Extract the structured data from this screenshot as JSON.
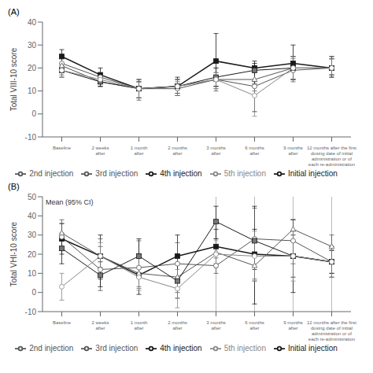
{
  "chart_data": [
    {
      "type": "line",
      "title": "(A)",
      "categories": [
        "Baseline",
        "2 weeks\nafter",
        "1 month\nafter",
        "2 months\nafter",
        "3 months\nafter",
        "6 months\nafter",
        "9 months\nafter",
        "12 months after the first\ndosing date of initial\nadministration or of\neach re-administration"
      ],
      "y_label": "Total VIII-10 score",
      "ylim": [
        -10,
        40
      ],
      "yticks": [
        -10,
        0,
        10,
        20,
        30,
        40
      ],
      "grid": false,
      "legend": "bottom",
      "series": [
        {
          "name": "Initial injection",
          "color": "#1a1a1a",
          "marker": "square",
          "values": [
            25,
            17,
            11,
            12,
            23,
            20,
            22,
            20
          ],
          "ci_low": [
            22,
            14,
            7,
            9,
            12,
            1,
            15,
            16
          ],
          "ci_high": [
            28,
            20,
            15,
            16,
            35,
            23,
            30,
            25
          ]
        },
        {
          "name": "2nd injection",
          "color": "#555555",
          "marker": "circle-open",
          "values": [
            22,
            16,
            11,
            11,
            15,
            12,
            19,
            20
          ],
          "ci_low": [
            18,
            12,
            7,
            9,
            11,
            8,
            15,
            17
          ],
          "ci_high": [
            26,
            18,
            15,
            14,
            18,
            14,
            24,
            24
          ]
        },
        {
          "name": "3rd injection",
          "color": "#555555",
          "marker": "triangle-open",
          "values": [
            21,
            14,
            11,
            12,
            15,
            15,
            20,
            20
          ],
          "ci_low": [
            17,
            12,
            6,
            8,
            10,
            10,
            14,
            16
          ],
          "ci_high": [
            24,
            17,
            14,
            15,
            20,
            18,
            25,
            25
          ]
        },
        {
          "name": "4th injection",
          "color": "#1a1a1a",
          "marker": "square-gray",
          "values": [
            19,
            14,
            11,
            12,
            16,
            19,
            20,
            20
          ],
          "ci_low": [
            16,
            12,
            7,
            8,
            12,
            13,
            15,
            17
          ],
          "ci_high": [
            22,
            17,
            14,
            15,
            20,
            22,
            25,
            24
          ]
        },
        {
          "name": "5th injection",
          "color": "#888888",
          "marker": "circle-open",
          "values": [
            19,
            15,
            11,
            12,
            15,
            8,
            20,
            20
          ],
          "ci_low": [
            16,
            13,
            7,
            8,
            11,
            -1,
            15,
            17
          ],
          "ci_high": [
            21,
            17,
            14,
            15,
            18,
            13,
            25,
            24
          ]
        }
      ]
    },
    {
      "type": "line",
      "title": "(B)",
      "categories": [
        "Baseline",
        "2 weeks\nafter",
        "1 month\nafter",
        "2 months\nafter",
        "3 months\nafter",
        "6 months\nafter",
        "9 months\nafter",
        "12 months after the first\ndosing date of initial\nadministration or of\neach re-administration"
      ],
      "y_label": "Total VHI-10 score",
      "ylim": [
        -10,
        50
      ],
      "yticks": [
        -10,
        0,
        10,
        20,
        30,
        40,
        50
      ],
      "grid": false,
      "legend": "bottom",
      "annotation": "Mean (95% CI)",
      "vlines": [
        4,
        5,
        6,
        7
      ],
      "series": [
        {
          "name": "Initial injection",
          "color": "#1a1a1a",
          "marker": "square",
          "values": [
            28,
            19,
            9,
            19,
            24,
            20,
            19,
            16
          ],
          "ci_low": [
            20,
            7,
            -1,
            7,
            14,
            -6,
            0,
            8
          ],
          "ci_high": [
            36,
            30,
            20,
            30,
            33,
            45,
            38,
            24
          ]
        },
        {
          "name": "2nd injection",
          "color": "#555555",
          "marker": "circle-open",
          "values": [
            29,
            12,
            13,
            15,
            14,
            28,
            27,
            16
          ],
          "ci_low": [
            22,
            1,
            3,
            5,
            10,
            6,
            15,
            10
          ],
          "ci_high": [
            36,
            24,
            27,
            26,
            18,
            44,
            38,
            22
          ]
        },
        {
          "name": "3rd injection",
          "color": "#555555",
          "marker": "triangle-open",
          "values": [
            31,
            19,
            10,
            8,
            21,
            14,
            33,
            24
          ],
          "ci_low": [
            24,
            13,
            2,
            0,
            15,
            7,
            20,
            16
          ],
          "ci_high": [
            38,
            28,
            20,
            19,
            28,
            28,
            38,
            30
          ]
        },
        {
          "name": "4th injection",
          "color": "#1a1a1a",
          "marker": "square-gray",
          "values": [
            23,
            9,
            19,
            6,
            37,
            27,
            19,
            16
          ],
          "ci_low": [
            15,
            3,
            10,
            -3,
            28,
            12,
            8,
            10
          ],
          "ci_high": [
            31,
            16,
            28,
            15,
            45,
            33,
            30,
            22
          ]
        },
        {
          "name": "5th injection",
          "color": "#888888",
          "marker": "circle-open",
          "values": [
            3,
            19,
            8,
            2,
            20,
            19,
            19,
            16
          ],
          "ci_low": [
            -4,
            13,
            1,
            -8,
            13,
            6,
            6,
            8
          ],
          "ci_high": [
            10,
            26,
            18,
            12,
            27,
            32,
            32,
            24
          ]
        }
      ]
    }
  ]
}
